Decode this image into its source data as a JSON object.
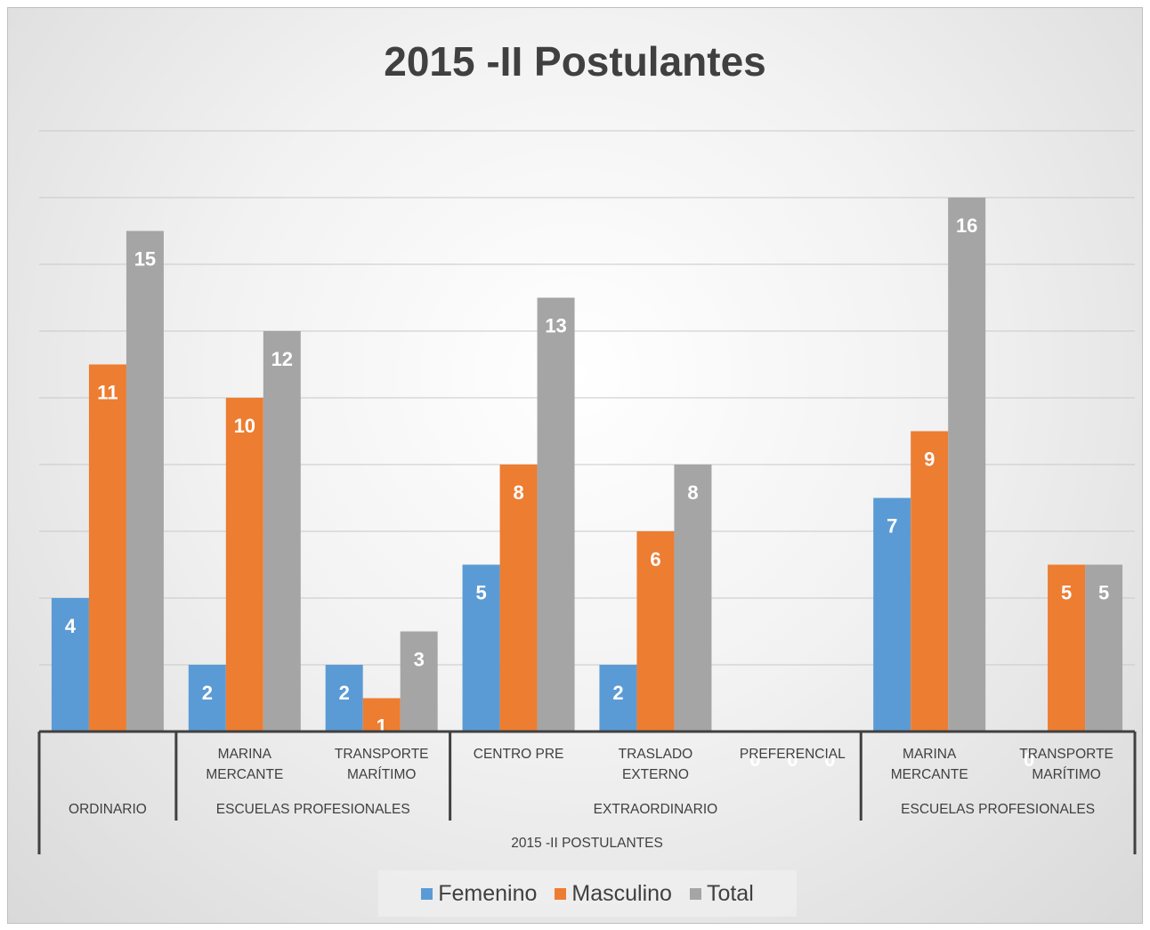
{
  "chart_data": {
    "type": "bar",
    "title": "2015 -II Postulantes",
    "axis_group_label": "2015 -II POSTULANTES",
    "category_groups": [
      {
        "label": "ORDINARIO",
        "categories": [
          null
        ]
      },
      {
        "label": "ESCUELAS PROFESIONALES",
        "categories": [
          "MARINA MERCANTE",
          "TRANSPORTE MARÍTIMO"
        ]
      },
      {
        "label": "EXTRAORDINARIO",
        "categories": [
          "CENTRO PRE",
          "TRASLADO EXTERNO",
          "PREFERENCIAL"
        ]
      },
      {
        "label": "ESCUELAS PROFESIONALES",
        "categories": [
          "MARINA MERCANTE",
          "TRANSPORTE MARÍTIMO"
        ]
      }
    ],
    "series": [
      {
        "name": "Femenino",
        "color": "#5b9bd5",
        "values": [
          4,
          2,
          2,
          5,
          2,
          0,
          7,
          0
        ]
      },
      {
        "name": "Masculino",
        "color": "#ed7d31",
        "values": [
          11,
          10,
          1,
          8,
          6,
          0,
          9,
          5
        ]
      },
      {
        "name": "Total",
        "color": "#a5a5a5",
        "values": [
          15,
          12,
          3,
          13,
          8,
          0,
          16,
          5
        ]
      }
    ],
    "ylim": [
      0,
      18
    ],
    "yticks": [
      0,
      2,
      4,
      6,
      8,
      10,
      12,
      14,
      16,
      18
    ],
    "grid": true,
    "legend": "bottom"
  }
}
